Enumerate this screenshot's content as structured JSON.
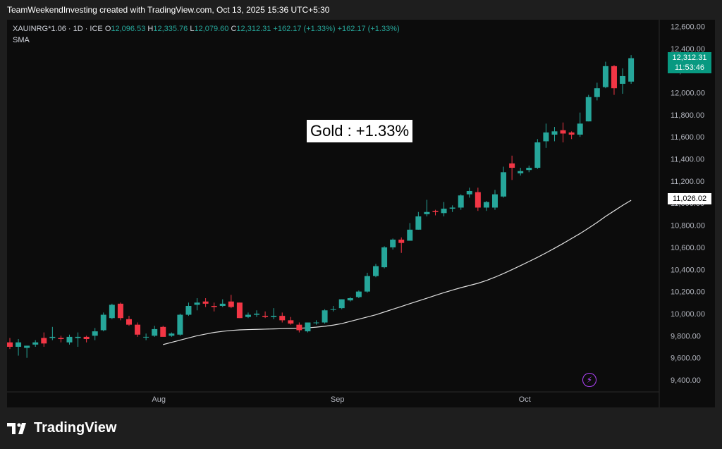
{
  "caption": "TeamWeekendInvesting created with TradingView.com, Oct 13, 2025 15:36 UTC+5:30",
  "legend": {
    "symbol": "XAUINRG*1.06 · 1D · ICE",
    "o_label": "O",
    "o_value": "12,096.53",
    "h_label": "H",
    "h_value": "12,335.76",
    "l_label": "L",
    "l_value": "12,079.60",
    "c_label": "C",
    "c_value": "12,312.31",
    "change1": "+162.17 (+1.33%)",
    "change2": "+162.17 (+1.33%)",
    "indicator": "SMA"
  },
  "annotation": "Gold : +1.33%",
  "price_tag": {
    "price": "12,312.31",
    "countdown": "11:53:46"
  },
  "sma_tag": "11,026.02",
  "brand": "TradingView",
  "colors": {
    "up": "#26a69a",
    "down": "#f23645",
    "sma": "#e0e0e0",
    "background": "#0c0c0c",
    "frame": "#1e1e1e"
  },
  "chart_data": {
    "type": "candlestick",
    "y_ticks": [
      "12,600.00",
      "12,400.00",
      "12,200.00",
      "12,000.00",
      "11,800.00",
      "11,600.00",
      "11,400.00",
      "11,200.00",
      "11,000.00",
      "10,800.00",
      "10,600.00",
      "10,400.00",
      "10,200.00",
      "10,000.00",
      "9,800.00",
      "9,600.00",
      "9,400.00"
    ],
    "y_tick_values": [
      12600,
      12400,
      12200,
      12000,
      11800,
      11600,
      11400,
      11200,
      11000,
      10800,
      10600,
      10400,
      10200,
      10000,
      9800,
      9600,
      9400
    ],
    "ylim": [
      9330,
      12660
    ],
    "x_labels": [
      {
        "label": "Aug",
        "index": 17.5
      },
      {
        "label": "Sep",
        "index": 38.5
      },
      {
        "label": "Oct",
        "index": 60.5
      }
    ],
    "ohlc": [
      [
        9740,
        9780,
        9680,
        9700
      ],
      [
        9700,
        9770,
        9620,
        9740
      ],
      [
        9690,
        9710,
        9600,
        9710
      ],
      [
        9720,
        9760,
        9700,
        9740
      ],
      [
        9780,
        9830,
        9700,
        9730
      ],
      [
        9780,
        9880,
        9760,
        9790
      ],
      [
        9780,
        9800,
        9740,
        9770
      ],
      [
        9740,
        9810,
        9720,
        9790
      ],
      [
        9780,
        9830,
        9700,
        9790
      ],
      [
        9790,
        9800,
        9740,
        9770
      ],
      [
        9800,
        9870,
        9760,
        9840
      ],
      [
        9850,
        10010,
        9840,
        9990
      ],
      [
        9960,
        10090,
        9950,
        10080
      ],
      [
        10090,
        10100,
        9940,
        9960
      ],
      [
        9950,
        9980,
        9890,
        9900
      ],
      [
        9900,
        9920,
        9790,
        9810
      ],
      [
        9790,
        9820,
        9760,
        9790
      ],
      [
        9800,
        9890,
        9790,
        9860
      ],
      [
        9880,
        9890,
        9800,
        9790
      ],
      [
        9800,
        9830,
        9790,
        9820
      ],
      [
        9810,
        10000,
        9800,
        9990
      ],
      [
        9990,
        10100,
        9980,
        10070
      ],
      [
        10080,
        10140,
        10030,
        10100
      ],
      [
        10110,
        10140,
        10060,
        10090
      ],
      [
        10070,
        10100,
        10020,
        10060
      ],
      [
        10070,
        10130,
        10060,
        10090
      ],
      [
        10110,
        10170,
        10050,
        10060
      ],
      [
        10100,
        10100,
        9960,
        9960
      ],
      [
        9970,
        10010,
        9960,
        9990
      ],
      [
        9990,
        10030,
        9970,
        10000
      ],
      [
        9980,
        10020,
        9960,
        9970
      ],
      [
        9970,
        10050,
        9950,
        9980
      ],
      [
        9980,
        10010,
        9920,
        9940
      ],
      [
        9940,
        9970,
        9900,
        9910
      ],
      [
        9900,
        9920,
        9830,
        9850
      ],
      [
        9840,
        9920,
        9830,
        9920
      ],
      [
        9920,
        9940,
        9900,
        9920
      ],
      [
        9920,
        10040,
        9910,
        10030
      ],
      [
        10040,
        10070,
        10020,
        10040
      ],
      [
        10050,
        10130,
        10040,
        10130
      ],
      [
        10120,
        10150,
        10110,
        10140
      ],
      [
        10150,
        10210,
        10140,
        10200
      ],
      [
        10200,
        10370,
        10190,
        10340
      ],
      [
        10340,
        10450,
        10330,
        10430
      ],
      [
        10420,
        10610,
        10410,
        10600
      ],
      [
        10600,
        10680,
        10580,
        10670
      ],
      [
        10670,
        10690,
        10550,
        10640
      ],
      [
        10660,
        10820,
        10660,
        10760
      ],
      [
        10760,
        10920,
        10760,
        10880
      ],
      [
        10900,
        11030,
        10880,
        10920
      ],
      [
        10930,
        10940,
        10890,
        10920
      ],
      [
        10910,
        11010,
        10880,
        10950
      ],
      [
        10950,
        10980,
        10920,
        10960
      ],
      [
        10960,
        11080,
        10940,
        11070
      ],
      [
        11080,
        11140,
        11050,
        11110
      ],
      [
        11100,
        11140,
        10930,
        10960
      ],
      [
        10960,
        11020,
        10930,
        11010
      ],
      [
        10960,
        11120,
        10940,
        11080
      ],
      [
        11060,
        11330,
        11050,
        11280
      ],
      [
        11360,
        11430,
        11210,
        11320
      ],
      [
        11270,
        11320,
        11250,
        11290
      ],
      [
        11300,
        11340,
        11280,
        11320
      ],
      [
        11320,
        11580,
        11310,
        11550
      ],
      [
        11560,
        11720,
        11500,
        11640
      ],
      [
        11620,
        11690,
        11560,
        11650
      ],
      [
        11660,
        11730,
        11550,
        11630
      ],
      [
        11640,
        11650,
        11580,
        11620
      ],
      [
        11620,
        11820,
        11600,
        11720
      ],
      [
        11740,
        11980,
        11740,
        11960
      ],
      [
        11960,
        12090,
        11930,
        12040
      ],
      [
        12050,
        12280,
        12040,
        12240
      ],
      [
        12240,
        12250,
        11980,
        12040
      ],
      [
        12080,
        12220,
        11990,
        12150
      ],
      [
        12100,
        12340,
        12080,
        12312
      ]
    ],
    "sma": [
      9720,
      9740,
      9760,
      9780,
      9800,
      9815,
      9830,
      9840,
      9848,
      9853,
      9856,
      9858,
      9860,
      9862,
      9864,
      9866,
      9868,
      9872,
      9878,
      9886,
      9896,
      9910,
      9930,
      9950,
      9970,
      9990,
      10015,
      10040,
      10065,
      10090,
      10115,
      10140,
      10165,
      10190,
      10213,
      10235,
      10255,
      10275,
      10300,
      10330,
      10363,
      10398,
      10435,
      10472,
      10510,
      10550,
      10592,
      10635,
      10680,
      10725,
      10774,
      10825,
      10880,
      10930,
      10980,
      11026
    ],
    "sma_start_index": 18
  }
}
